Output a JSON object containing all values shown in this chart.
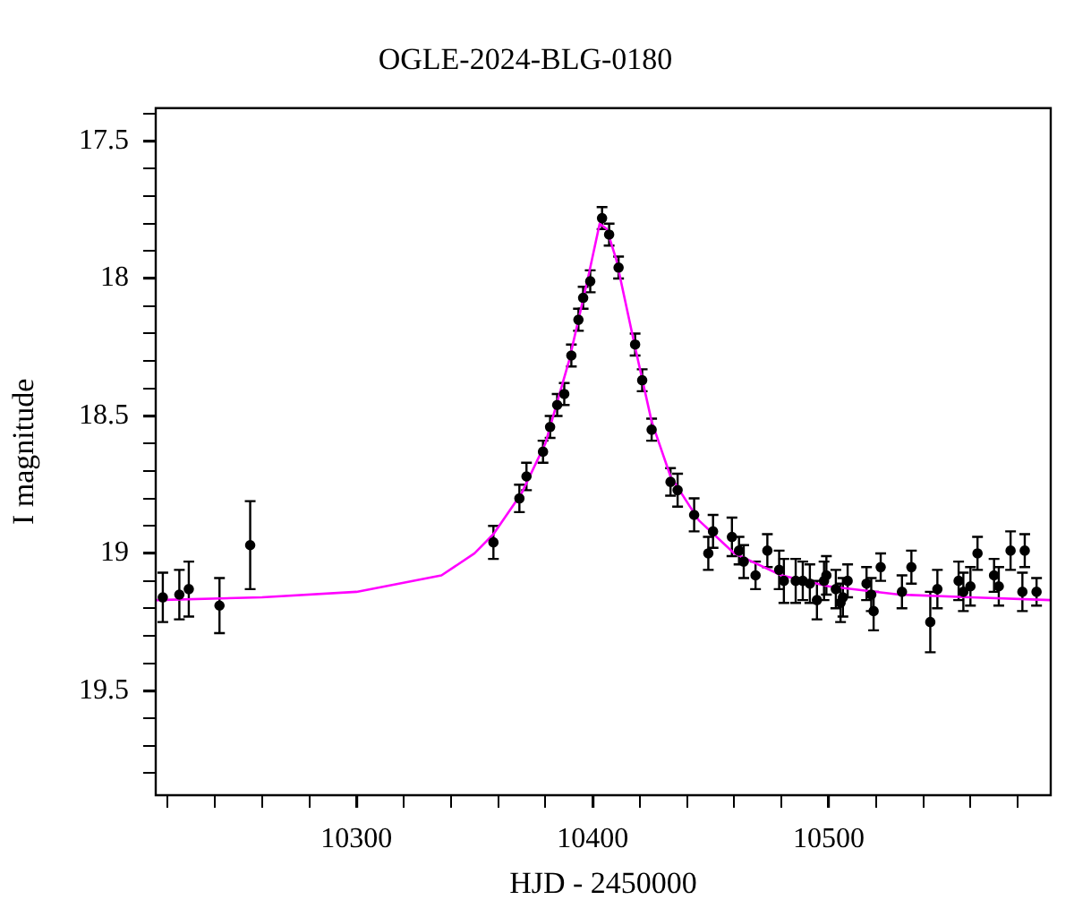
{
  "chart_data": {
    "type": "scatter",
    "title": "OGLE-2024-BLG-0180",
    "xlabel": "HJD - 2450000",
    "ylabel": "I magnitude",
    "xlim": [
      10215,
      10594
    ],
    "ylim": [
      19.88,
      17.38
    ],
    "xticks": [
      {
        "value": 10220,
        "label": null
      },
      {
        "value": 10240,
        "label": null
      },
      {
        "value": 10260,
        "label": null
      },
      {
        "value": 10280,
        "label": null
      },
      10300,
      {
        "value": 10320,
        "label": null
      },
      {
        "value": 10340,
        "label": null
      },
      {
        "value": 10360,
        "label": null
      },
      {
        "value": 10380,
        "label": null
      },
      10400,
      {
        "value": 10420,
        "label": null
      },
      {
        "value": 10440,
        "label": null
      },
      {
        "value": 10460,
        "label": null
      },
      {
        "value": 10480,
        "label": null
      },
      10500,
      {
        "value": 10520,
        "label": null
      },
      {
        "value": 10540,
        "label": null
      },
      {
        "value": 10560,
        "label": null
      },
      {
        "value": 10580,
        "label": null
      }
    ],
    "yticks": [
      {
        "value": 17.4,
        "label": null
      },
      17.5,
      {
        "value": 17.6,
        "label": null
      },
      {
        "value": 17.7,
        "label": null
      },
      {
        "value": 17.8,
        "label": null
      },
      {
        "value": 17.9,
        "label": null
      },
      18,
      {
        "value": 18.1,
        "label": null
      },
      {
        "value": 18.2,
        "label": null
      },
      {
        "value": 18.3,
        "label": null
      },
      {
        "value": 18.4,
        "label": null
      },
      18.5,
      {
        "value": 18.6,
        "label": null
      },
      {
        "value": 18.7,
        "label": null
      },
      {
        "value": 18.8,
        "label": null
      },
      {
        "value": 18.9,
        "label": null
      },
      19,
      {
        "value": 19.1,
        "label": null
      },
      {
        "value": 19.2,
        "label": null
      },
      {
        "value": 19.3,
        "label": null
      },
      {
        "value": 19.4,
        "label": null
      },
      19.5,
      {
        "value": 19.6,
        "label": null
      },
      {
        "value": 19.7,
        "label": null
      },
      {
        "value": 19.8,
        "label": null
      }
    ],
    "grid": false,
    "legend": false,
    "marker": "circle",
    "series": [
      {
        "type": "line",
        "color": "#ff00ff",
        "marker": "none",
        "line_style": "solid",
        "x": [
          10215,
          10260,
          10300,
          10336,
          10350,
          10358,
          10370,
          10380,
          10390,
          10398,
          10403,
          10406,
          10410,
          10418,
          10425,
          10433,
          10445,
          10460,
          10480,
          10500,
          10530,
          10560,
          10594
        ],
        "values": [
          19.17,
          19.16,
          19.14,
          19.08,
          19.0,
          18.93,
          18.78,
          18.6,
          18.3,
          18.0,
          17.8,
          17.82,
          17.93,
          18.25,
          18.52,
          18.72,
          18.88,
          19.0,
          19.08,
          19.12,
          19.15,
          19.16,
          19.17
        ]
      },
      {
        "color": "#000000",
        "x": [
          10218,
          10225,
          10229,
          10242,
          10255,
          10358,
          10369,
          10372,
          10379,
          10382,
          10385,
          10388,
          10391,
          10394,
          10396,
          10399,
          10404,
          10407,
          10411,
          10418,
          10421,
          10425,
          10433,
          10436,
          10443,
          10449,
          10451,
          10459,
          10462,
          10464,
          10469,
          10474,
          10479,
          10481,
          10486,
          10489,
          10492,
          10495,
          10498,
          10499,
          10503,
          10505,
          10506,
          10508,
          10516,
          10518,
          10519,
          10522,
          10531,
          10535,
          10543,
          10546,
          10555,
          10557,
          10560,
          10563,
          10570,
          10572,
          10577,
          10582,
          10583,
          10588
        ],
        "values": [
          19.16,
          19.15,
          19.13,
          19.19,
          18.97,
          18.96,
          18.8,
          18.72,
          18.63,
          18.54,
          18.46,
          18.42,
          18.28,
          18.15,
          18.07,
          18.01,
          17.78,
          17.84,
          17.96,
          18.24,
          18.37,
          18.55,
          18.74,
          18.77,
          18.86,
          19.0,
          18.92,
          18.94,
          18.99,
          19.03,
          19.08,
          18.99,
          19.06,
          19.1,
          19.1,
          19.1,
          19.11,
          19.17,
          19.1,
          19.08,
          19.13,
          19.18,
          19.16,
          19.1,
          19.11,
          19.15,
          19.21,
          19.05,
          19.14,
          19.05,
          19.25,
          19.13,
          19.1,
          19.14,
          19.12,
          19.0,
          19.08,
          19.12,
          18.99,
          19.14,
          18.99,
          19.14
        ],
        "errors": [
          0.09,
          0.09,
          0.1,
          0.1,
          0.16,
          0.06,
          0.05,
          0.05,
          0.04,
          0.04,
          0.04,
          0.04,
          0.04,
          0.04,
          0.04,
          0.04,
          0.04,
          0.04,
          0.04,
          0.04,
          0.04,
          0.04,
          0.05,
          0.06,
          0.06,
          0.06,
          0.06,
          0.07,
          0.05,
          0.06,
          0.05,
          0.06,
          0.07,
          0.08,
          0.08,
          0.07,
          0.07,
          0.07,
          0.07,
          0.07,
          0.07,
          0.07,
          0.07,
          0.06,
          0.06,
          0.06,
          0.07,
          0.05,
          0.06,
          0.06,
          0.11,
          0.07,
          0.07,
          0.07,
          0.07,
          0.06,
          0.06,
          0.07,
          0.07,
          0.07,
          0.06,
          0.05
        ]
      }
    ]
  }
}
